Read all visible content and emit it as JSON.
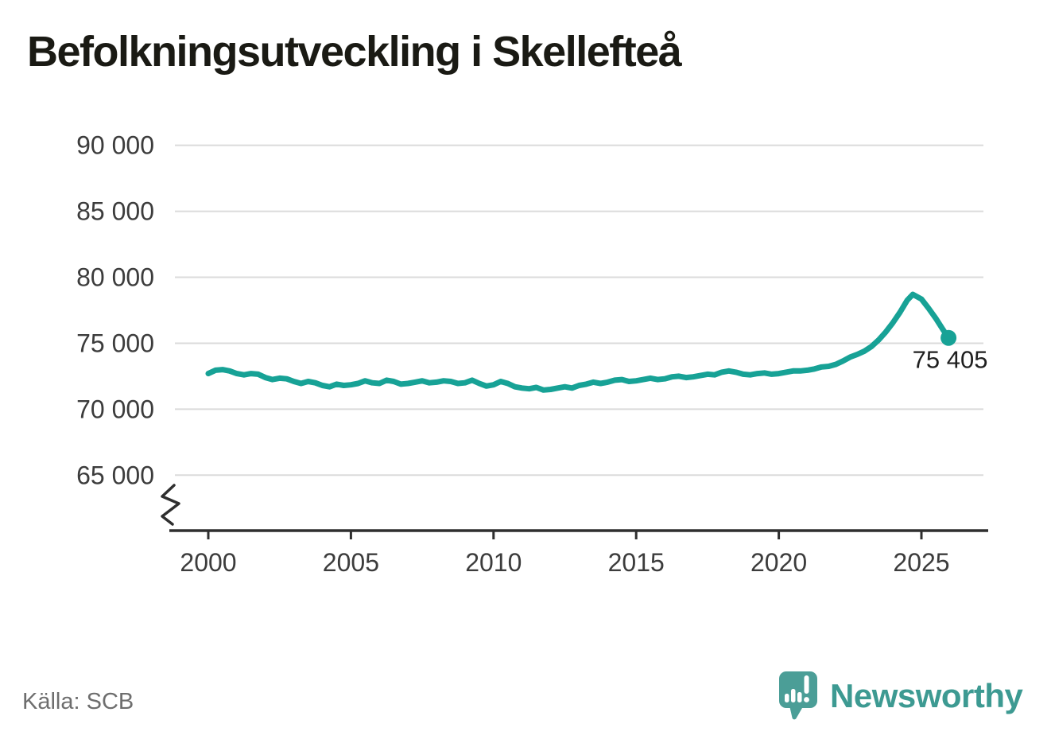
{
  "title": "Befolkningsutveckling i Skellefteå",
  "footer": {
    "source": "Källa: SCB",
    "brand": "Newsworthy"
  },
  "colors": {
    "line": "#17A296",
    "grid": "#dbdbdb",
    "axis": "#2f2f2f",
    "tick_text": "#3c3c3c",
    "annotation_text": "#1f1f1f",
    "logo_teal": "#4B9E97",
    "brand_text_teal": "#3d9a92"
  },
  "chart_data": {
    "type": "line",
    "title": "Befolkningsutveckling i Skellefteå",
    "xlabel": "",
    "ylabel": "",
    "grid": "horizontal",
    "legend": "none",
    "axis_break": true,
    "xlim": [
      1998.8,
      2027.2
    ],
    "ylim": [
      62500,
      91500
    ],
    "source": "SCB",
    "latest": {
      "value": 75405,
      "label": "75 405"
    },
    "yticks": [
      {
        "value": 90000,
        "label": "90 000"
      },
      {
        "value": 85000,
        "label": "85 000"
      },
      {
        "value": 80000,
        "label": "80 000"
      },
      {
        "value": 75000,
        "label": "75 000"
      },
      {
        "value": 70000,
        "label": "70 000"
      },
      {
        "value": 65000,
        "label": "65 000"
      }
    ],
    "xticks": [
      {
        "value": 2000,
        "label": "2000"
      },
      {
        "value": 2005,
        "label": "2005"
      },
      {
        "value": 2010,
        "label": "2010"
      },
      {
        "value": 2015,
        "label": "2015"
      },
      {
        "value": 2020,
        "label": "2020"
      },
      {
        "value": 2025,
        "label": "2025"
      }
    ],
    "series": [
      {
        "color": "#17A296",
        "points": [
          [
            2000.0,
            72700
          ],
          [
            2000.25,
            72950
          ],
          [
            2000.5,
            73000
          ],
          [
            2000.75,
            72900
          ],
          [
            2001.0,
            72700
          ],
          [
            2001.25,
            72600
          ],
          [
            2001.5,
            72700
          ],
          [
            2001.75,
            72650
          ],
          [
            2002.0,
            72400
          ],
          [
            2002.25,
            72250
          ],
          [
            2002.5,
            72350
          ],
          [
            2002.75,
            72300
          ],
          [
            2003.0,
            72100
          ],
          [
            2003.25,
            71950
          ],
          [
            2003.5,
            72100
          ],
          [
            2003.75,
            72000
          ],
          [
            2004.0,
            71800
          ],
          [
            2004.25,
            71700
          ],
          [
            2004.5,
            71900
          ],
          [
            2004.75,
            71800
          ],
          [
            2005.0,
            71850
          ],
          [
            2005.25,
            71950
          ],
          [
            2005.5,
            72150
          ],
          [
            2005.75,
            72000
          ],
          [
            2006.0,
            71950
          ],
          [
            2006.25,
            72200
          ],
          [
            2006.5,
            72100
          ],
          [
            2006.75,
            71900
          ],
          [
            2007.0,
            71950
          ],
          [
            2007.25,
            72050
          ],
          [
            2007.5,
            72150
          ],
          [
            2007.75,
            72000
          ],
          [
            2008.0,
            72050
          ],
          [
            2008.25,
            72150
          ],
          [
            2008.5,
            72100
          ],
          [
            2008.75,
            71950
          ],
          [
            2009.0,
            72000
          ],
          [
            2009.25,
            72200
          ],
          [
            2009.5,
            71950
          ],
          [
            2009.75,
            71750
          ],
          [
            2010.0,
            71850
          ],
          [
            2010.25,
            72100
          ],
          [
            2010.5,
            71950
          ],
          [
            2010.75,
            71700
          ],
          [
            2011.0,
            71600
          ],
          [
            2011.25,
            71550
          ],
          [
            2011.5,
            71650
          ],
          [
            2011.75,
            71450
          ],
          [
            2012.0,
            71500
          ],
          [
            2012.25,
            71600
          ],
          [
            2012.5,
            71700
          ],
          [
            2012.75,
            71600
          ],
          [
            2013.0,
            71800
          ],
          [
            2013.25,
            71900
          ],
          [
            2013.5,
            72050
          ],
          [
            2013.75,
            71950
          ],
          [
            2014.0,
            72050
          ],
          [
            2014.25,
            72200
          ],
          [
            2014.5,
            72250
          ],
          [
            2014.75,
            72100
          ],
          [
            2015.0,
            72150
          ],
          [
            2015.25,
            72250
          ],
          [
            2015.5,
            72350
          ],
          [
            2015.75,
            72250
          ],
          [
            2016.0,
            72300
          ],
          [
            2016.25,
            72450
          ],
          [
            2016.5,
            72500
          ],
          [
            2016.75,
            72400
          ],
          [
            2017.0,
            72450
          ],
          [
            2017.25,
            72550
          ],
          [
            2017.5,
            72650
          ],
          [
            2017.75,
            72600
          ],
          [
            2018.0,
            72800
          ],
          [
            2018.25,
            72900
          ],
          [
            2018.5,
            72800
          ],
          [
            2018.75,
            72650
          ],
          [
            2019.0,
            72600
          ],
          [
            2019.25,
            72700
          ],
          [
            2019.5,
            72750
          ],
          [
            2019.75,
            72650
          ],
          [
            2020.0,
            72700
          ],
          [
            2020.25,
            72800
          ],
          [
            2020.5,
            72900
          ],
          [
            2020.75,
            72900
          ],
          [
            2021.0,
            72950
          ],
          [
            2021.25,
            73050
          ],
          [
            2021.5,
            73200
          ],
          [
            2021.75,
            73250
          ],
          [
            2022.0,
            73400
          ],
          [
            2022.25,
            73650
          ],
          [
            2022.5,
            73950
          ],
          [
            2022.75,
            74150
          ],
          [
            2023.0,
            74400
          ],
          [
            2023.25,
            74750
          ],
          [
            2023.5,
            75250
          ],
          [
            2023.75,
            75850
          ],
          [
            2024.0,
            76550
          ],
          [
            2024.25,
            77350
          ],
          [
            2024.5,
            78250
          ],
          [
            2024.7,
            78700
          ],
          [
            2025.0,
            78350
          ],
          [
            2025.25,
            77650
          ],
          [
            2025.5,
            76900
          ],
          [
            2025.75,
            76050
          ],
          [
            2025.95,
            75405
          ]
        ]
      }
    ]
  }
}
